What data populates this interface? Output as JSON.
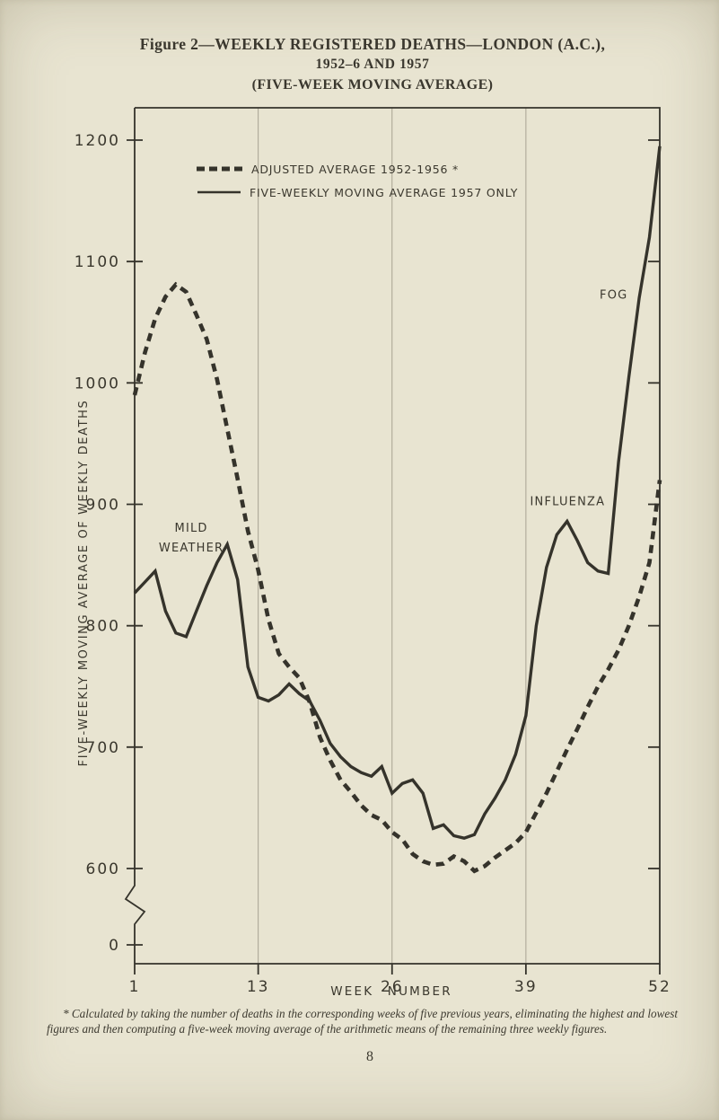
{
  "title": {
    "line1": "Figure 2—WEEKLY REGISTERED DEATHS—LONDON (A.C.),",
    "line2": "1952–6 AND 1957",
    "line3": "(FIVE-WEEK MOVING AVERAGE)"
  },
  "footnote": "* Calculated by taking the number of deaths in the corresponding weeks of five previous years, eliminating the highest and lowest figures and then computing a five-week moving average of the arithmetic means of the remaining three weekly figures.",
  "page_number": "8",
  "colors": {
    "paper": "#e8e4d1",
    "ink": "#3a372e",
    "curve": "#35332b",
    "faint_grid": "#a8a292"
  },
  "chart_data": {
    "type": "line",
    "title": "Figure 2—Weekly registered deaths—London (A.C.), 1952–6 and 1957 (five-week moving average)",
    "xlabel": "WEEK NUMBER",
    "ylabel": "FIVE-WEEKLY MOVING AVERAGE OF WEEKLY DEATHS",
    "x": [
      1,
      2,
      3,
      4,
      5,
      6,
      7,
      8,
      9,
      10,
      11,
      12,
      13,
      14,
      15,
      16,
      17,
      18,
      19,
      20,
      21,
      22,
      23,
      24,
      25,
      26,
      27,
      28,
      29,
      30,
      31,
      32,
      33,
      34,
      35,
      36,
      37,
      38,
      39,
      40,
      41,
      42,
      43,
      44,
      45,
      46,
      47,
      48,
      49,
      50,
      51,
      52
    ],
    "x_ticks": [
      1,
      13,
      26,
      39,
      52
    ],
    "y_ticks": [
      1200,
      1100,
      1000,
      900,
      800,
      700,
      600
    ],
    "y_zero_label": "0",
    "y_axis_break": true,
    "ylim_display": [
      600,
      1200
    ],
    "gridline_weeks": [
      13,
      26,
      39
    ],
    "legend_position": "top-left-inside",
    "series": [
      {
        "name": "ADJUSTED AVERAGE 1952-1956 *",
        "style": "dashed",
        "values": [
          990,
          1025,
          1053,
          1071,
          1081,
          1075,
          1056,
          1036,
          1003,
          962,
          921,
          878,
          846,
          805,
          777,
          766,
          757,
          737,
          708,
          689,
          673,
          663,
          652,
          644,
          640,
          630,
          624,
          612,
          606,
          603,
          604,
          610,
          606,
          598,
          602,
          609,
          615,
          621,
          630,
          646,
          662,
          680,
          698,
          715,
          733,
          750,
          764,
          780,
          800,
          824,
          852,
          920
        ]
      },
      {
        "name": "FIVE-WEEKLY MOVING AVERAGE 1957 ONLY",
        "style": "solid",
        "values": [
          827,
          836,
          845,
          812,
          794,
          791,
          812,
          833,
          852,
          867,
          838,
          766,
          741,
          738,
          743,
          752,
          744,
          738,
          722,
          703,
          692,
          684,
          679,
          676,
          684,
          662,
          670,
          673,
          662,
          633,
          636,
          627,
          625,
          628,
          645,
          658,
          673,
          694,
          726,
          800,
          848,
          875,
          886,
          870,
          852,
          845,
          843,
          935,
          1005,
          1070,
          1120,
          1195
        ]
      }
    ],
    "annotations": [
      {
        "label": "MILD",
        "week": 6.5,
        "value": 878,
        "anchor": "middle"
      },
      {
        "label": "WEATHER",
        "week": 6.5,
        "value": 862,
        "anchor": "middle"
      },
      {
        "label": "INFLUENZA",
        "week": 46.7,
        "value": 900,
        "anchor": "end"
      },
      {
        "label": "FOG",
        "week": 48.9,
        "value": 1070,
        "anchor": "end"
      }
    ]
  }
}
